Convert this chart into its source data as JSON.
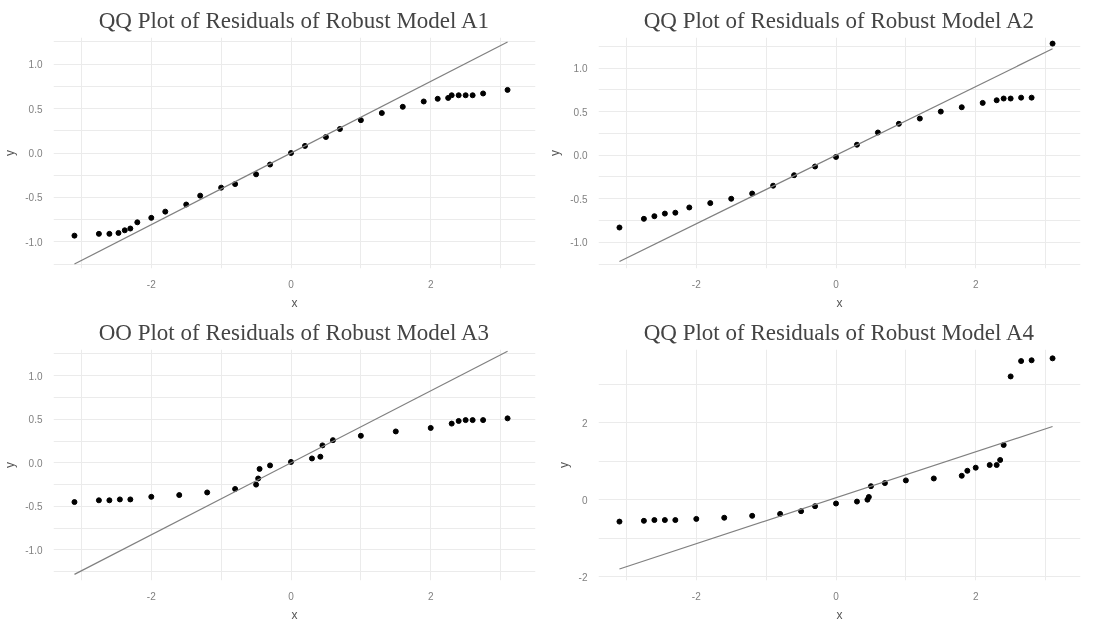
{
  "chart_data": [
    {
      "type": "scatter",
      "title": "QQ Plot of Residuals of Robust Model A1",
      "xlabel": "x",
      "ylabel": "y",
      "xlim": [
        -3.4,
        3.5
      ],
      "ylim": [
        -1.3,
        1.3
      ],
      "xticks": [
        {
          "value": -3,
          "label": null
        },
        -2,
        {
          "value": -1,
          "label": null
        },
        0,
        {
          "value": 1,
          "label": null
        },
        2,
        {
          "value": 3,
          "label": null
        }
      ],
      "yticks": [
        {
          "value": -1.25,
          "label": null
        },
        {
          "value": -1,
          "label": "-1.0"
        },
        {
          "value": -0.75,
          "label": null
        },
        {
          "value": -0.5,
          "label": "-0.5"
        },
        {
          "value": -0.25,
          "label": null
        },
        {
          "value": 0,
          "label": "0.0"
        },
        {
          "value": 0.25,
          "label": null
        },
        {
          "value": 0.5,
          "label": "0.5"
        },
        {
          "value": 0.75,
          "label": null
        },
        {
          "value": 1,
          "label": "1.0"
        },
        {
          "value": 1.25,
          "label": null
        }
      ],
      "grid": true,
      "marker": "circle",
      "series": [
        {
          "color": "#000000",
          "x": [
            -3.1,
            -2.75,
            -2.6,
            -2.47,
            -2.38,
            -2.3,
            -2.2,
            -2.0,
            -1.8,
            -1.5,
            -1.3,
            -1.0,
            -0.8,
            -0.5,
            -0.3,
            0,
            0.2,
            0.5,
            0.7,
            1.0,
            1.3,
            1.6,
            1.9,
            2.1,
            2.25,
            2.3,
            2.4,
            2.5,
            2.6,
            2.75,
            3.1
          ],
          "values": [
            -0.93,
            -0.91,
            -0.91,
            -0.9,
            -0.87,
            -0.85,
            -0.78,
            -0.73,
            -0.66,
            -0.58,
            -0.48,
            -0.39,
            -0.35,
            -0.24,
            -0.13,
            0.0,
            0.08,
            0.18,
            0.27,
            0.37,
            0.45,
            0.52,
            0.58,
            0.61,
            0.62,
            0.65,
            0.65,
            0.65,
            0.65,
            0.67,
            0.71
          ]
        },
        {
          "type": "line",
          "color": "#808080",
          "marker": "none",
          "x": [
            -3.1,
            3.1
          ],
          "values": [
            -1.25,
            1.25
          ]
        }
      ]
    },
    {
      "type": "scatter",
      "title": "QQ Plot of Residuals of Robust Model A2",
      "xlabel": "x",
      "ylabel": "y",
      "xlim": [
        -3.4,
        3.5
      ],
      "ylim": [
        -1.3,
        1.35
      ],
      "xticks": [
        {
          "value": -3,
          "label": null
        },
        -2,
        {
          "value": -1,
          "label": null
        },
        0,
        {
          "value": 1,
          "label": null
        },
        2,
        {
          "value": 3,
          "label": null
        }
      ],
      "yticks": [
        {
          "value": -1.25,
          "label": null
        },
        {
          "value": -1,
          "label": "-1.0"
        },
        {
          "value": -0.75,
          "label": null
        },
        {
          "value": -0.5,
          "label": "-0.5"
        },
        {
          "value": -0.25,
          "label": null
        },
        {
          "value": 0,
          "label": "0.0"
        },
        {
          "value": 0.25,
          "label": null
        },
        {
          "value": 0.5,
          "label": "0.5"
        },
        {
          "value": 0.75,
          "label": null
        },
        {
          "value": 1,
          "label": "1.0"
        },
        {
          "value": 1.25,
          "label": null
        }
      ],
      "grid": true,
      "marker": "circle",
      "series": [
        {
          "color": "#000000",
          "x": [
            -3.1,
            -2.75,
            -2.6,
            -2.45,
            -2.3,
            -2.1,
            -1.8,
            -1.5,
            -1.2,
            -0.9,
            -0.6,
            -0.3,
            0,
            0.3,
            0.6,
            0.9,
            1.2,
            1.5,
            1.8,
            2.1,
            2.3,
            2.4,
            2.5,
            2.65,
            2.8,
            3.1
          ],
          "values": [
            -0.83,
            -0.73,
            -0.7,
            -0.67,
            -0.66,
            -0.6,
            -0.55,
            -0.5,
            -0.44,
            -0.35,
            -0.23,
            -0.13,
            -0.02,
            0.12,
            0.26,
            0.36,
            0.42,
            0.5,
            0.55,
            0.6,
            0.63,
            0.65,
            0.65,
            0.66,
            0.66,
            1.28
          ]
        },
        {
          "type": "line",
          "color": "#808080",
          "marker": "none",
          "x": [
            -3.1,
            3.1
          ],
          "values": [
            -1.22,
            1.22
          ]
        }
      ]
    },
    {
      "type": "scatter",
      "title": "OO Plot of Residuals of Robust Model A3",
      "xlabel": "x",
      "ylabel": "y",
      "xlim": [
        -3.4,
        3.5
      ],
      "ylim": [
        -1.35,
        1.3
      ],
      "xticks": [
        {
          "value": -3,
          "label": null
        },
        -2,
        {
          "value": -1,
          "label": null
        },
        0,
        {
          "value": 1,
          "label": null
        },
        2,
        {
          "value": 3,
          "label": null
        }
      ],
      "yticks": [
        {
          "value": -1.25,
          "label": null
        },
        {
          "value": -1,
          "label": "-1.0"
        },
        {
          "value": -0.75,
          "label": null
        },
        {
          "value": -0.5,
          "label": "-0.5"
        },
        {
          "value": -0.25,
          "label": null
        },
        {
          "value": 0,
          "label": "0.0"
        },
        {
          "value": 0.25,
          "label": null
        },
        {
          "value": 0.5,
          "label": "0.5"
        },
        {
          "value": 0.75,
          "label": null
        },
        {
          "value": 1,
          "label": "1.0"
        },
        {
          "value": 1.25,
          "label": null
        }
      ],
      "grid": true,
      "marker": "circle",
      "series": [
        {
          "color": "#000000",
          "x": [
            -3.1,
            -2.75,
            -2.6,
            -2.45,
            -2.3,
            -2.0,
            -1.6,
            -1.2,
            -0.8,
            -0.5,
            -0.47,
            -0.45,
            -0.3,
            0,
            0.3,
            0.42,
            0.45,
            0.6,
            1.0,
            1.5,
            2.0,
            2.3,
            2.4,
            2.5,
            2.6,
            2.75,
            3.1
          ],
          "values": [
            -0.45,
            -0.43,
            -0.43,
            -0.42,
            -0.42,
            -0.39,
            -0.37,
            -0.34,
            -0.3,
            -0.25,
            -0.18,
            -0.07,
            -0.03,
            0.01,
            0.05,
            0.07,
            0.2,
            0.26,
            0.31,
            0.36,
            0.4,
            0.45,
            0.48,
            0.49,
            0.49,
            0.49,
            0.51
          ]
        },
        {
          "type": "line",
          "color": "#808080",
          "marker": "none",
          "x": [
            -3.1,
            3.1
          ],
          "values": [
            -1.28,
            1.28
          ]
        }
      ]
    },
    {
      "type": "scatter",
      "title": "QQ Plot of Residuals of Robust Model A4",
      "xlabel": "x",
      "ylabel": "y",
      "xlim": [
        -3.4,
        3.5
      ],
      "ylim": [
        -2.1,
        3.9
      ],
      "xticks": [
        {
          "value": -3,
          "label": null
        },
        -2,
        {
          "value": -1,
          "label": null
        },
        0,
        {
          "value": 1,
          "label": null
        },
        2,
        {
          "value": 3,
          "label": null
        }
      ],
      "yticks": [
        -2,
        {
          "value": -1,
          "label": null
        },
        0,
        {
          "value": 1,
          "label": null
        },
        2,
        {
          "value": 3,
          "label": null
        }
      ],
      "grid": true,
      "marker": "circle",
      "series": [
        {
          "color": "#000000",
          "x": [
            -3.1,
            -2.75,
            -2.6,
            -2.45,
            -2.3,
            -2.0,
            -1.6,
            -1.2,
            -0.8,
            -0.5,
            -0.3,
            0,
            0.3,
            0.45,
            0.47,
            0.5,
            0.7,
            1.0,
            1.4,
            1.8,
            1.88,
            2.0,
            2.2,
            2.3,
            2.35,
            2.4,
            2.5,
            2.65,
            2.8,
            3.1
          ],
          "values": [
            -0.57,
            -0.55,
            -0.53,
            -0.53,
            -0.53,
            -0.5,
            -0.47,
            -0.42,
            -0.37,
            -0.3,
            -0.17,
            -0.1,
            -0.05,
            0.0,
            0.07,
            0.35,
            0.43,
            0.5,
            0.55,
            0.62,
            0.75,
            0.83,
            0.9,
            0.9,
            1.03,
            1.42,
            3.2,
            3.6,
            3.62,
            3.67
          ]
        },
        {
          "type": "line",
          "color": "#808080",
          "marker": "none",
          "x": [
            -3.1,
            3.1
          ],
          "values": [
            -1.8,
            1.9
          ]
        }
      ]
    }
  ]
}
